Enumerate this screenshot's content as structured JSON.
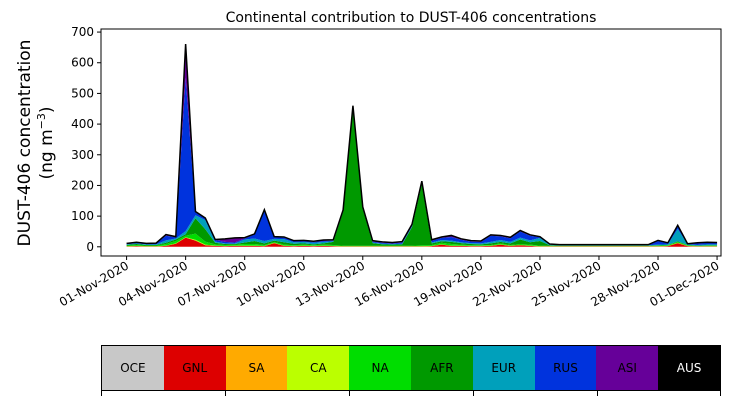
{
  "chart_data": {
    "type": "area",
    "stacked": true,
    "title": "Continental contribution to DUST-406 concentrations",
    "ylabel": "DUST-406 concentration",
    "ylabel_unit": "(ng m",
    "ylabel_unit_exp": "−3",
    "ylabel_unit_close": ")",
    "xlabel": "",
    "ylim": [
      -30,
      710
    ],
    "yticks": [
      0,
      100,
      200,
      300,
      400,
      500,
      600,
      700
    ],
    "xlim_days": [
      -1.3,
      30.2
    ],
    "xticks": [
      {
        "day": 0,
        "label": "01-Nov-2020"
      },
      {
        "day": 3,
        "label": "04-Nov-2020"
      },
      {
        "day": 6,
        "label": "07-Nov-2020"
      },
      {
        "day": 9,
        "label": "10-Nov-2020"
      },
      {
        "day": 12,
        "label": "13-Nov-2020"
      },
      {
        "day": 15,
        "label": "16-Nov-2020"
      },
      {
        "day": 18,
        "label": "19-Nov-2020"
      },
      {
        "day": 21,
        "label": "22-Nov-2020"
      },
      {
        "day": 24,
        "label": "25-Nov-2020"
      },
      {
        "day": 27,
        "label": "28-Nov-2020"
      },
      {
        "day": 30,
        "label": "01-Dec-2020"
      }
    ],
    "x": [
      0,
      0.5,
      1,
      1.5,
      2,
      2.5,
      3,
      3.5,
      4,
      4.5,
      5,
      5.5,
      6,
      6.5,
      7,
      7.5,
      8,
      8.5,
      9,
      9.5,
      10,
      10.5,
      11,
      11.5,
      12,
      12.5,
      13,
      13.5,
      14,
      14.5,
      15,
      15.5,
      16,
      16.5,
      17,
      17.5,
      18,
      18.5,
      19,
      19.5,
      20,
      20.5,
      21,
      21.5,
      22,
      22.5,
      23,
      23.5,
      24,
      24.5,
      25,
      25.5,
      26,
      26.5,
      27,
      27.5,
      28,
      28.5,
      29,
      29.5,
      30
    ],
    "series": [
      {
        "name": "OCE",
        "color": "#c8c8c8",
        "values": [
          0,
          0,
          0,
          0,
          0,
          0,
          0,
          0,
          0,
          0,
          0,
          0,
          0,
          0,
          0,
          0,
          0,
          0,
          0,
          0,
          0,
          0,
          0,
          0,
          0,
          0,
          0,
          0,
          0,
          0,
          0,
          0,
          0,
          0,
          0,
          0,
          0,
          0,
          0,
          0,
          0,
          0,
          0,
          0,
          0,
          0,
          0,
          0,
          0,
          0,
          0,
          0,
          0,
          0,
          0,
          0,
          0,
          0,
          0,
          0,
          0
        ]
      },
      {
        "name": "GNL",
        "color": "#dd0000",
        "values": [
          1,
          2,
          1,
          1,
          3,
          10,
          30,
          20,
          5,
          3,
          2,
          3,
          3,
          3,
          2,
          12,
          3,
          2,
          3,
          2,
          3,
          2,
          1,
          1,
          1,
          1,
          1,
          1,
          1,
          1,
          1,
          2,
          7,
          3,
          3,
          2,
          2,
          3,
          7,
          3,
          5,
          3,
          1,
          1,
          1,
          1,
          1,
          1,
          1,
          1,
          1,
          1,
          1,
          1,
          1,
          2,
          12,
          2,
          1,
          1,
          1
        ]
      },
      {
        "name": "SA",
        "color": "#ffaa00",
        "values": [
          0,
          0,
          0,
          0,
          0,
          0,
          0,
          0,
          0,
          0,
          0,
          0,
          0,
          0,
          0,
          0,
          0,
          0,
          0,
          0,
          0,
          0,
          0,
          0,
          0,
          0,
          0,
          0,
          0,
          0,
          0,
          0,
          0,
          0,
          0,
          0,
          0,
          0,
          0,
          0,
          0,
          0,
          0,
          0,
          0,
          0,
          0,
          0,
          0,
          0,
          0,
          0,
          0,
          0,
          0,
          0,
          0,
          0,
          0,
          0,
          0
        ]
      },
      {
        "name": "CA",
        "color": "#bbff00",
        "values": [
          1,
          1,
          1,
          1,
          1,
          1,
          1,
          3,
          2,
          1,
          1,
          1,
          1,
          1,
          1,
          1,
          1,
          1,
          1,
          1,
          1,
          1,
          1,
          1,
          1,
          1,
          1,
          1,
          1,
          1,
          1,
          1,
          1,
          1,
          1,
          1,
          1,
          1,
          1,
          1,
          1,
          1,
          1,
          1,
          1,
          1,
          1,
          1,
          1,
          1,
          1,
          1,
          1,
          1,
          1,
          1,
          1,
          1,
          1,
          1,
          1
        ]
      },
      {
        "name": "NA",
        "color": "#00dd00",
        "values": [
          2,
          3,
          2,
          2,
          5,
          8,
          5,
          20,
          10,
          4,
          3,
          3,
          5,
          5,
          3,
          3,
          3,
          2,
          3,
          2,
          3,
          3,
          2,
          2,
          2,
          2,
          2,
          2,
          2,
          2,
          3,
          3,
          5,
          5,
          3,
          2,
          2,
          2,
          3,
          2,
          3,
          3,
          2,
          1,
          1,
          1,
          1,
          1,
          1,
          1,
          1,
          1,
          1,
          1,
          2,
          2,
          3,
          2,
          1,
          2,
          2
        ]
      },
      {
        "name": "AFR",
        "color": "#009900",
        "values": [
          2,
          3,
          2,
          2,
          4,
          5,
          5,
          50,
          40,
          5,
          3,
          2,
          5,
          10,
          5,
          4,
          8,
          5,
          4,
          3,
          4,
          10,
          110,
          450,
          120,
          8,
          4,
          3,
          4,
          60,
          200,
          5,
          5,
          7,
          5,
          4,
          3,
          5,
          5,
          5,
          15,
          8,
          15,
          2,
          1,
          1,
          1,
          1,
          1,
          1,
          1,
          1,
          1,
          1,
          1,
          1,
          2,
          1,
          1,
          1,
          1
        ]
      },
      {
        "name": "EUR",
        "color": "#00a0bb",
        "values": [
          2,
          2,
          2,
          2,
          8,
          3,
          10,
          10,
          30,
          4,
          2,
          2,
          10,
          8,
          8,
          6,
          10,
          5,
          5,
          5,
          5,
          2,
          2,
          2,
          2,
          2,
          2,
          2,
          2,
          2,
          2,
          3,
          4,
          4,
          3,
          3,
          3,
          5,
          6,
          5,
          6,
          6,
          10,
          2,
          1,
          1,
          1,
          1,
          1,
          1,
          1,
          1,
          1,
          1,
          2,
          2,
          40,
          2,
          2,
          3,
          3
        ]
      },
      {
        "name": "RUS",
        "color": "#0033dd",
        "values": [
          2,
          3,
          2,
          3,
          15,
          4,
          500,
          10,
          5,
          5,
          5,
          3,
          3,
          13,
          100,
          5,
          5,
          3,
          3,
          3,
          3,
          2,
          2,
          2,
          2,
          3,
          3,
          2,
          4,
          4,
          4,
          6,
          7,
          12,
          8,
          5,
          5,
          20,
          12,
          12,
          20,
          15,
          2,
          1,
          1,
          1,
          1,
          1,
          1,
          1,
          1,
          1,
          1,
          1,
          12,
          3,
          10,
          1,
          5,
          5,
          4
        ]
      },
      {
        "name": "ASI",
        "color": "#660099",
        "values": [
          1,
          1,
          1,
          1,
          4,
          2,
          110,
          2,
          2,
          2,
          10,
          15,
          3,
          2,
          2,
          2,
          2,
          2,
          2,
          2,
          3,
          3,
          2,
          2,
          2,
          3,
          3,
          3,
          3,
          3,
          3,
          3,
          3,
          5,
          3,
          3,
          3,
          3,
          3,
          3,
          3,
          3,
          2,
          1,
          1,
          1,
          1,
          1,
          1,
          1,
          1,
          1,
          1,
          1,
          2,
          2,
          2,
          1,
          2,
          2,
          2
        ]
      },
      {
        "name": "AUS",
        "color": "#000000",
        "values": [
          0,
          0,
          0,
          0,
          0,
          0,
          0,
          0,
          0,
          0,
          0,
          0,
          0,
          0,
          0,
          0,
          0,
          0,
          0,
          0,
          0,
          0,
          0,
          0,
          0,
          0,
          0,
          0,
          0,
          0,
          0,
          0,
          0,
          0,
          0,
          0,
          0,
          0,
          0,
          0,
          0,
          0,
          0,
          0,
          0,
          0,
          0,
          0,
          0,
          0,
          0,
          0,
          0,
          0,
          0,
          0,
          0,
          0,
          0,
          0,
          0
        ]
      }
    ]
  },
  "legend": {
    "items": [
      {
        "label": "OCE",
        "color": "#c8c8c8",
        "text_color": "#000000"
      },
      {
        "label": "GNL",
        "color": "#dd0000",
        "text_color": "#000000"
      },
      {
        "label": "SA",
        "color": "#ffaa00",
        "text_color": "#000000"
      },
      {
        "label": "CA",
        "color": "#bbff00",
        "text_color": "#000000"
      },
      {
        "label": "NA",
        "color": "#00dd00",
        "text_color": "#000000"
      },
      {
        "label": "AFR",
        "color": "#009900",
        "text_color": "#000000"
      },
      {
        "label": "EUR",
        "color": "#00a0bb",
        "text_color": "#000000"
      },
      {
        "label": "RUS",
        "color": "#0033dd",
        "text_color": "#000000"
      },
      {
        "label": "ASI",
        "color": "#660099",
        "text_color": "#000000"
      },
      {
        "label": "AUS",
        "color": "#000000",
        "text_color": "#ffffff"
      }
    ]
  }
}
